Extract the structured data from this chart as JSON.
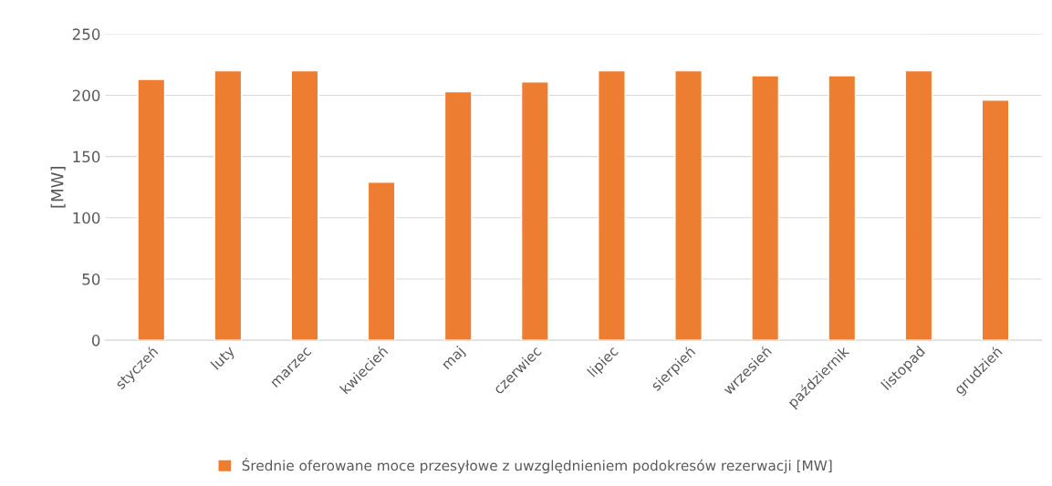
{
  "chart_data": {
    "type": "bar",
    "ylabel": "[MW]",
    "categories": [
      "styczeń",
      "luty",
      "marzec",
      "kwiecień",
      "maj",
      "czerwiec",
      "lipiec",
      "sierpień",
      "wrzesień",
      "październik",
      "listopad",
      "grudzień"
    ],
    "series": [
      {
        "name": "Średnie oferowane moce przesyłowe z uwzględnieniem podokresów rezerwacji [MW]",
        "color": "#ed7d31",
        "values": [
          213,
          220,
          220,
          129,
          203,
          211,
          220,
          220,
          216,
          216,
          220,
          196
        ]
      }
    ],
    "ylim": [
      0,
      250
    ],
    "yticks": [
      0,
      50,
      100,
      150,
      200,
      250
    ],
    "grid": "y",
    "legend": "bottom"
  }
}
